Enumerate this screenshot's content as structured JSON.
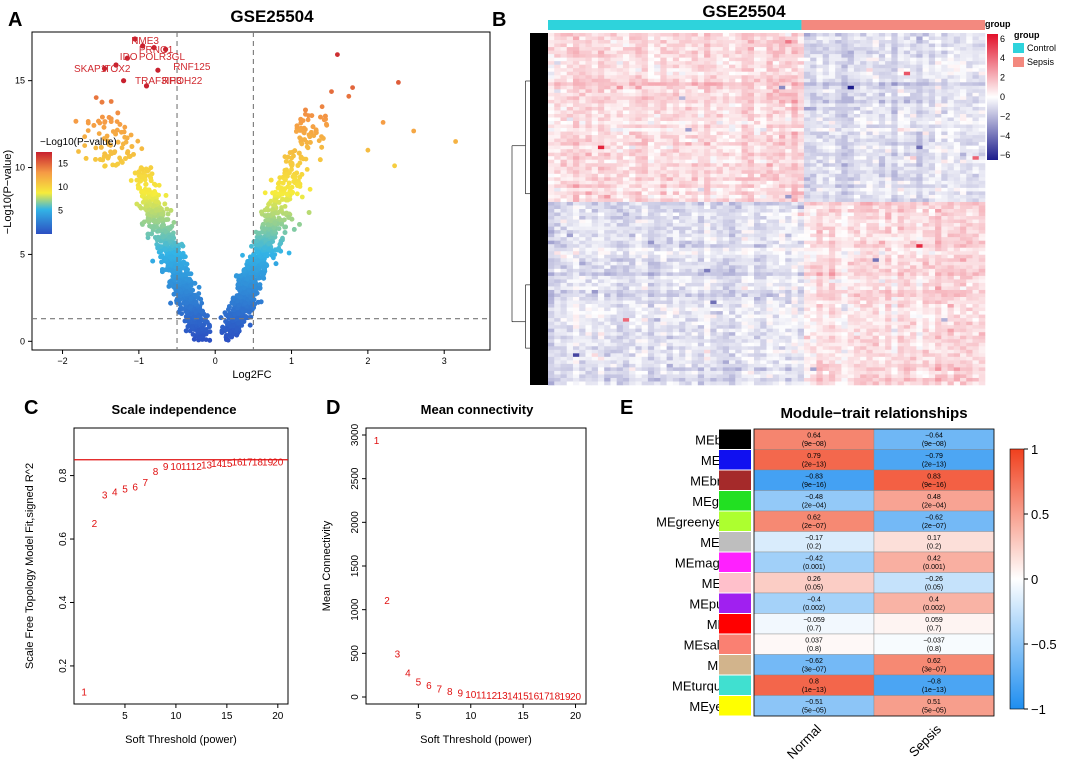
{
  "chart_data": [
    {
      "panel": "A",
      "type": "scatter",
      "subtype": "volcano",
      "title": "GSE25504",
      "xlabel": "Log2FC",
      "ylabel": "−Log10(P−value)",
      "xlim": [
        -2.4,
        3.6
      ],
      "ylim": [
        -0.5,
        17.8
      ],
      "xticks": [
        -2,
        -1,
        0,
        1,
        2,
        3
      ],
      "yticks": [
        0,
        5,
        10,
        15
      ],
      "fc_cutoffs": [
        -0.5,
        0.5
      ],
      "p_cutoff": 1.3,
      "colorbar": {
        "title": "−Log10(P−value)",
        "ticks": [
          5,
          10,
          15
        ],
        "range": [
          0,
          17.5
        ]
      },
      "labels": [
        {
          "text": "NME3",
          "x": -1.1,
          "y": 17.1
        },
        {
          "text": "PRNG1",
          "x": -1.0,
          "y": 16.6
        },
        {
          "text": "IDO",
          "x": -1.25,
          "y": 16.2
        },
        {
          "text": "POLR3GL",
          "x": -1.0,
          "y": 16.2
        },
        {
          "text": "SKAP1",
          "x": -1.85,
          "y": 15.5
        },
        {
          "text": "TOX2",
          "x": -1.45,
          "y": 15.5
        },
        {
          "text": "RNF125",
          "x": -0.55,
          "y": 15.6
        },
        {
          "text": "TRAF3IP3",
          "x": -1.05,
          "y": 14.8
        },
        {
          "text": "RHOH22",
          "x": -0.7,
          "y": 14.8
        }
      ]
    },
    {
      "panel": "B",
      "type": "heatmap",
      "title": "GSE25504",
      "groups": [
        {
          "name": "Control",
          "color": "#2ed3dc",
          "fraction": 0.58
        },
        {
          "name": "Sepsis",
          "color": "#f3897f",
          "fraction": 0.42
        }
      ],
      "legend_title": "group",
      "colorbar_ticks": [
        6,
        4,
        2,
        0,
        -2,
        -4,
        -6
      ],
      "scale_range": [
        -6.5,
        6.5
      ]
    },
    {
      "panel": "C",
      "type": "scatter",
      "title": "Scale independence",
      "xlabel": "Soft Threshold (power)",
      "ylabel": "Scale Free Topology Model Fit,signed R^2",
      "xlim": [
        0,
        21
      ],
      "ylim": [
        0.08,
        0.95
      ],
      "xticks": [
        5,
        10,
        15,
        20
      ],
      "yticks": [
        0.2,
        0.4,
        0.6,
        0.8
      ],
      "threshold_line": 0.85,
      "x": [
        1,
        2,
        3,
        4,
        5,
        6,
        7,
        8,
        9,
        10,
        11,
        12,
        13,
        14,
        15,
        16,
        17,
        18,
        19,
        20
      ],
      "y": [
        0.12,
        0.65,
        0.74,
        0.75,
        0.76,
        0.765,
        0.78,
        0.815,
        0.83,
        0.83,
        0.83,
        0.83,
        0.835,
        0.84,
        0.84,
        0.845,
        0.845,
        0.845,
        0.845,
        0.845
      ]
    },
    {
      "panel": "D",
      "type": "scatter",
      "title": "Mean connectivity",
      "xlabel": "Soft Threshold (power)",
      "ylabel": "Mean Connectivity",
      "xlim": [
        0,
        21
      ],
      "ylim": [
        -80,
        3080
      ],
      "xticks": [
        5,
        10,
        15,
        20
      ],
      "yticks": [
        0,
        500,
        1000,
        1500,
        2000,
        2500,
        3000
      ],
      "x": [
        1,
        2,
        3,
        4,
        5,
        6,
        7,
        8,
        9,
        10,
        11,
        12,
        13,
        14,
        15,
        16,
        17,
        18,
        19,
        20
      ],
      "y": [
        2940,
        1110,
        500,
        280,
        180,
        140,
        100,
        70,
        50,
        35,
        30,
        25,
        25,
        20,
        20,
        18,
        15,
        15,
        12,
        10
      ]
    },
    {
      "panel": "E",
      "type": "heatmap",
      "title": "Module−trait relationships",
      "columns": [
        "Normal",
        "Sepsis"
      ],
      "colorbar_ticks": [
        1,
        0.5,
        0,
        -0.5,
        -1
      ],
      "rows": [
        {
          "name": "MEblack",
          "color": "#000000",
          "values": [
            "0.64",
            "−0.64"
          ],
          "p": [
            "(9e−08)",
            "(9e−08)"
          ]
        },
        {
          "name": "MEblue",
          "color": "#1010f0",
          "values": [
            "0.79",
            "−0.79"
          ],
          "p": [
            "(2e−13)",
            "(2e−13)"
          ]
        },
        {
          "name": "MEbrown",
          "color": "#a52a2a",
          "values": [
            "−0.83",
            "0.83"
          ],
          "p": [
            "(9e−16)",
            "(9e−16)"
          ]
        },
        {
          "name": "MEgreen",
          "color": "#22e022",
          "values": [
            "−0.48",
            "0.48"
          ],
          "p": [
            "(2e−04)",
            "(2e−04)"
          ]
        },
        {
          "name": "MEgreenyellow",
          "color": "#adff2f",
          "values": [
            "0.62",
            "−0.62"
          ],
          "p": [
            "(2e−07)",
            "(2e−07)"
          ]
        },
        {
          "name": "MEgrey",
          "color": "#bebebe",
          "values": [
            "−0.17",
            "0.17"
          ],
          "p": [
            "(0.2)",
            "(0.2)"
          ]
        },
        {
          "name": "MEmagenta",
          "color": "#ff20ff",
          "values": [
            "−0.42",
            "0.42"
          ],
          "p": [
            "(0.001)",
            "(0.001)"
          ]
        },
        {
          "name": "MEpink",
          "color": "#ffc0cb",
          "values": [
            "0.26",
            "−0.26"
          ],
          "p": [
            "(0.05)",
            "(0.05)"
          ]
        },
        {
          "name": "MEpurple",
          "color": "#a020f0",
          "values": [
            "−0.4",
            "0.4"
          ],
          "p": [
            "(0.002)",
            "(0.002)"
          ]
        },
        {
          "name": "MEred",
          "color": "#ff0000",
          "values": [
            "−0.059",
            "0.059"
          ],
          "p": [
            "(0.7)",
            "(0.7)"
          ]
        },
        {
          "name": "MEsalmon",
          "color": "#fa8072",
          "values": [
            "0.037",
            "−0.037"
          ],
          "p": [
            "(0.8)",
            "(0.8)"
          ]
        },
        {
          "name": "MEtan",
          "color": "#d2b48c",
          "values": [
            "−0.62",
            "0.62"
          ],
          "p": [
            "(3e−07)",
            "(3e−07)"
          ]
        },
        {
          "name": "MEturquoise",
          "color": "#40e0d0",
          "values": [
            "0.8",
            "−0.8"
          ],
          "p": [
            "(1e−13)",
            "(1e−13)"
          ]
        },
        {
          "name": "MEyellow",
          "color": "#ffff00",
          "values": [
            "−0.51",
            "0.51"
          ],
          "p": [
            "(5e−05)",
            "(5e−05)"
          ]
        }
      ]
    }
  ]
}
